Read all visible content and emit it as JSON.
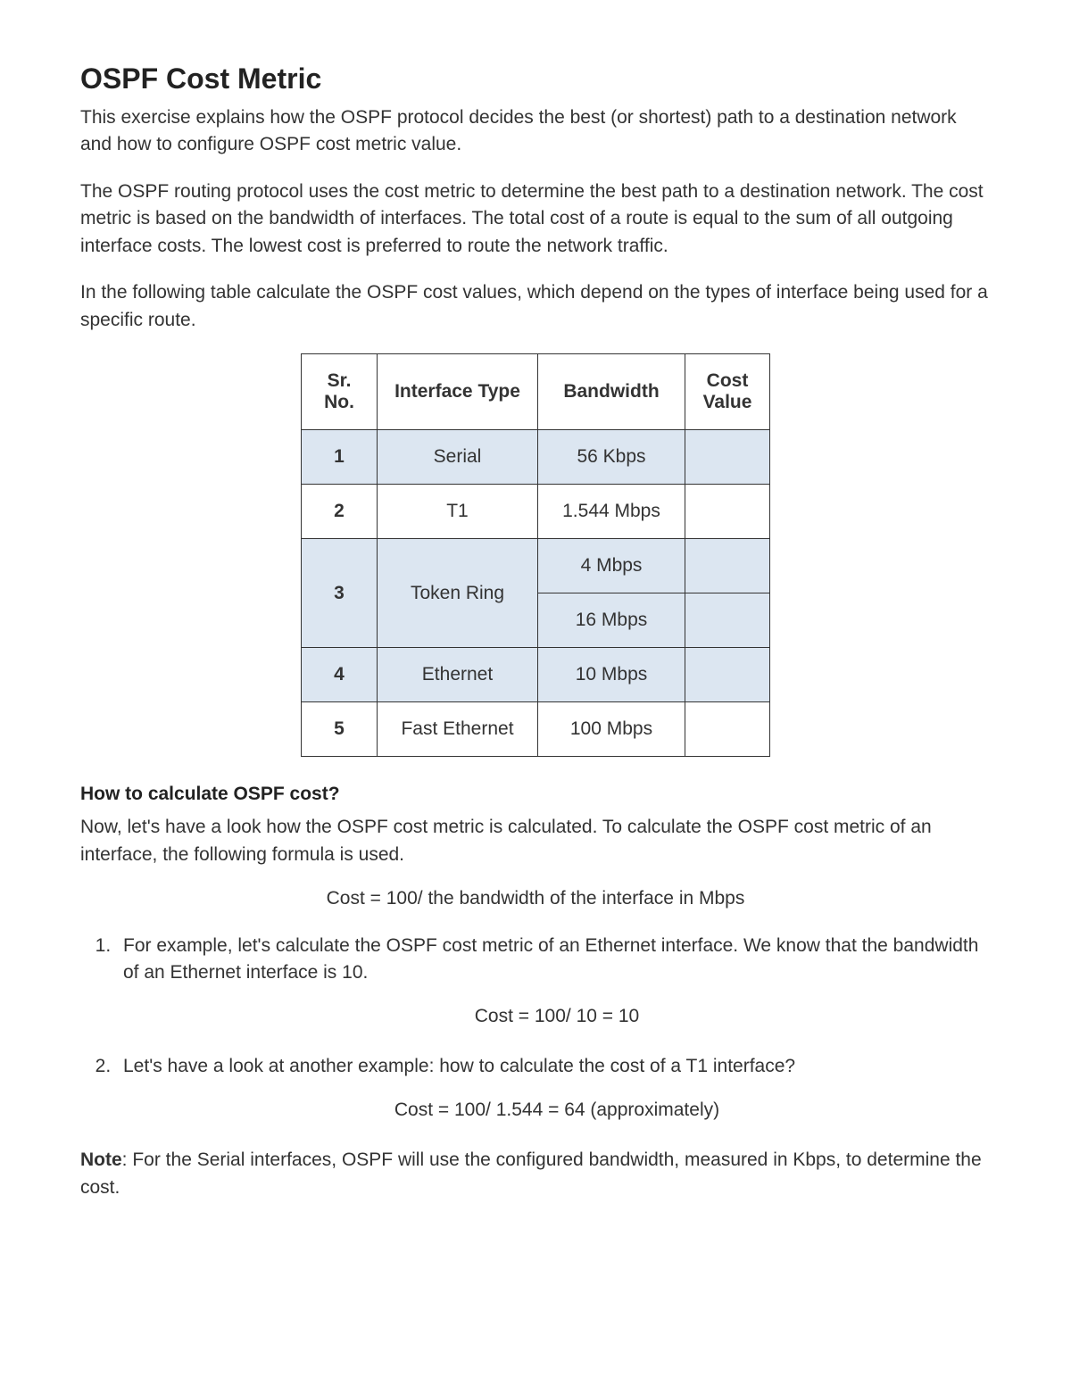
{
  "heading": "OSPF Cost Metric",
  "para1": "This exercise explains how the OSPF protocol decides the best (or shortest) path to a destination network and how to configure OSPF cost metric value.",
  "para2": "The OSPF routing protocol uses the cost metric to determine the best path to a destination network. The cost metric is based on the bandwidth of interfaces. The total cost of a route is equal to the sum of all outgoing interface costs. The lowest cost is preferred to route the network traffic.",
  "para3": "In the following table calculate the OSPF cost values, which depend on the types of interface being used for a specific route.",
  "table": {
    "headers": {
      "sr": "Sr. No.",
      "type": "Interface Type",
      "bw": "Bandwidth",
      "cost": "Cost Value"
    },
    "rows": [
      {
        "sr": "1",
        "type": "Serial",
        "bw": "56 Kbps",
        "cost": "",
        "shaded": true
      },
      {
        "sr": "2",
        "type": "T1",
        "bw": "1.544 Mbps",
        "cost": "",
        "shaded": false
      },
      {
        "sr": "3",
        "type": "Token Ring",
        "bw1": "4 Mbps",
        "bw2": "16 Mbps",
        "cost1": "",
        "cost2": "",
        "shaded": true,
        "split": true
      },
      {
        "sr": "4",
        "type": "Ethernet",
        "bw": "10 Mbps",
        "cost": "",
        "shaded": true
      },
      {
        "sr": "5",
        "type": "Fast Ethernet",
        "bw": "100 Mbps",
        "cost": "",
        "shaded": false
      }
    ],
    "shade_color": "#dce6f1",
    "border_color": "#333333"
  },
  "subheading": "How to calculate OSPF cost?",
  "para4": "Now, let's have a look how the OSPF cost metric is calculated. To calculate the OSPF cost metric of an interface, the following formula is used.",
  "formula1": "Cost = 100/ the bandwidth of the interface in Mbps",
  "list": {
    "item1": "For example, let's calculate the OSPF cost metric of an Ethernet interface. We know that the bandwidth of an Ethernet interface is 10.",
    "item1_formula": "Cost = 100/ 10 = 10",
    "item2": "Let's have a look at another example: how to calculate the cost of a T1 interface?",
    "item2_formula": "Cost = 100/ 1.544 = 64 (approximately)"
  },
  "note_label": "Note",
  "note_text": ": For the Serial interfaces, OSPF will use the configured bandwidth, measured in Kbps, to determine the cost."
}
